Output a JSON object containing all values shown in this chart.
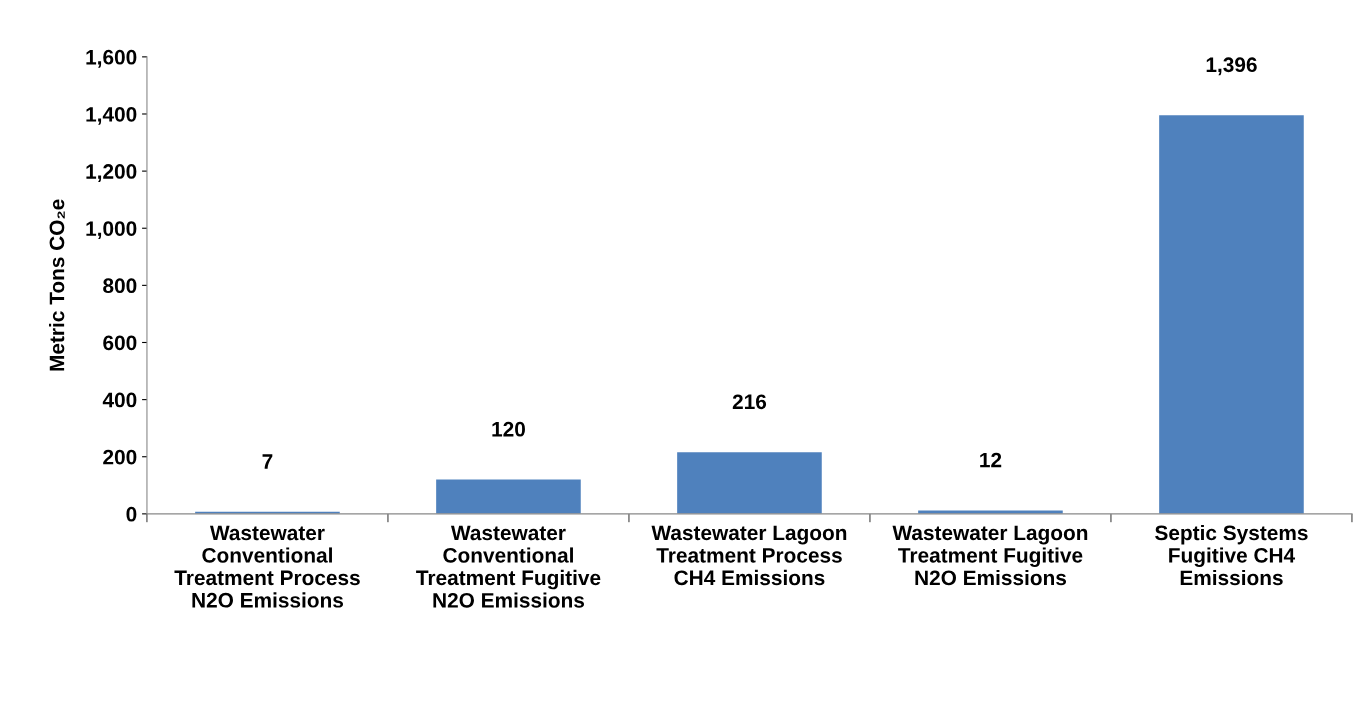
{
  "chart_data": {
    "type": "bar",
    "ylabel": "Metric Tons CO₂e",
    "categories": [
      "Wastewater\nConventional\nTreatment Process\nN2O Emissions",
      "Wastewater\nConventional\nTreatment Fugitive\nN2O Emissions",
      "Wastewater Lagoon\nTreatment Process\nCH4 Emissions",
      "Wastewater Lagoon\nTreatment Fugitive\nN2O Emissions",
      "Septic Systems\nFugitive CH4\nEmissions"
    ],
    "values": [
      7,
      120,
      216,
      12,
      1396
    ],
    "value_labels": [
      "7",
      "120",
      "216",
      "12",
      "1,396"
    ],
    "color": "#4f81bd",
    "ylim": [
      0,
      1600
    ],
    "yticks": [
      0,
      {
        "value": 200,
        "label": "200"
      },
      {
        "value": 400,
        "label": "400"
      },
      {
        "value": 600,
        "label": "600"
      },
      {
        "value": 800,
        "label": "800"
      },
      {
        "value": 1000,
        "label": "1,000"
      },
      {
        "value": 1200,
        "label": "1,200"
      },
      {
        "value": 1400,
        "label": "1,400"
      },
      {
        "value": 1600,
        "label": "1,600"
      }
    ],
    "grid": false,
    "legend": false
  }
}
